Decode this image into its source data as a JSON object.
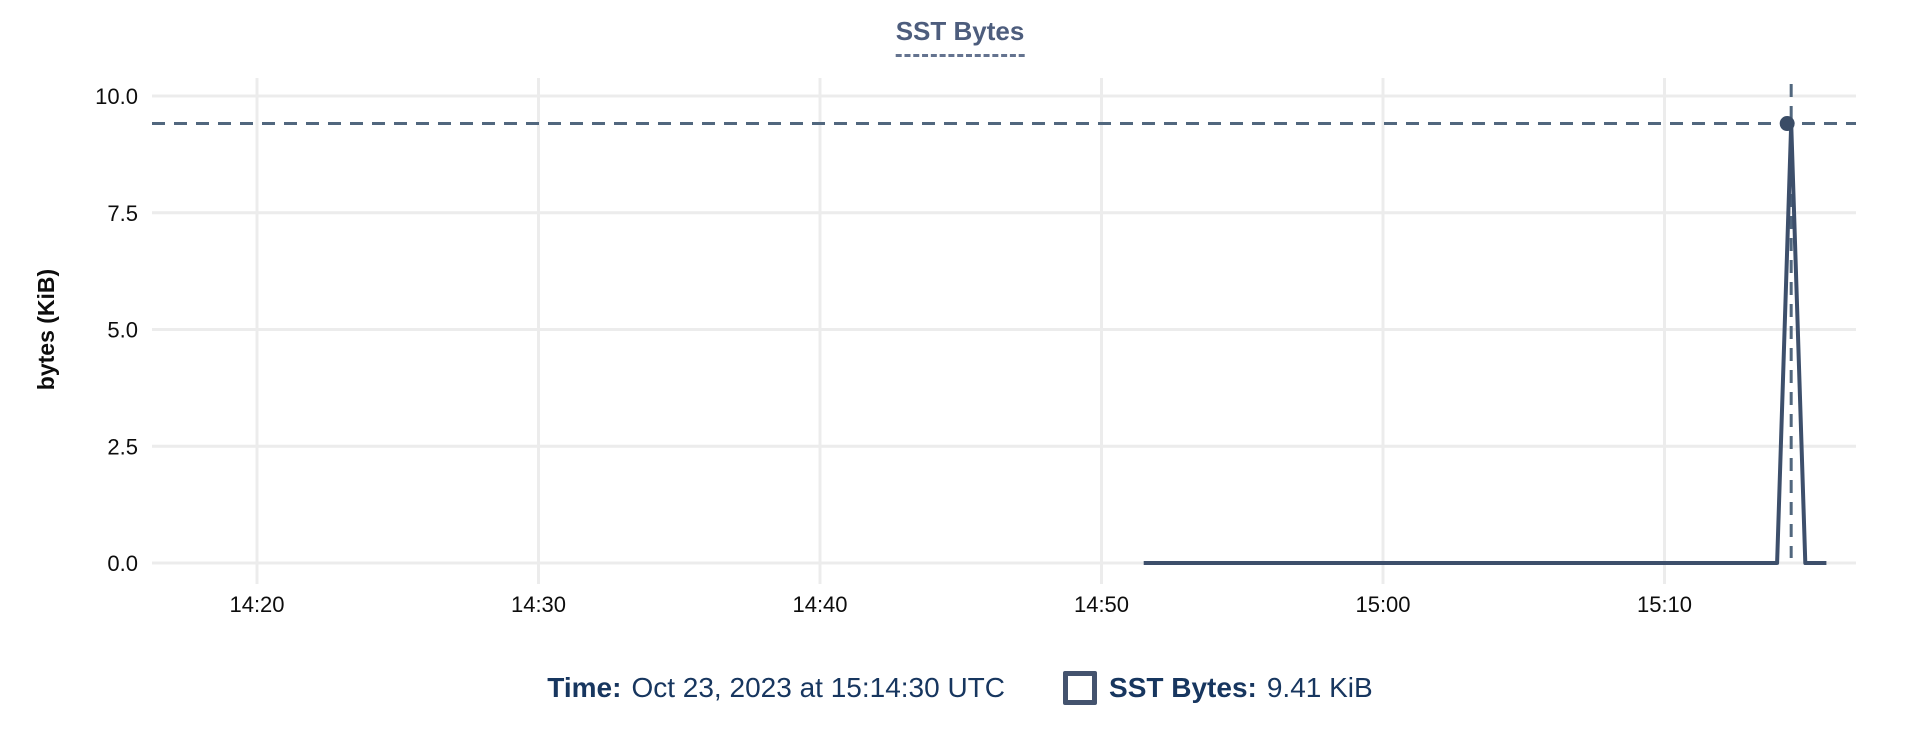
{
  "title": "SST Bytes",
  "tooltip": {
    "time_label": "Time:",
    "time_value": "Oct 23, 2023 at 15:14:30 UTC",
    "series_label": "SST Bytes:",
    "series_value": "9.41 KiB"
  },
  "colors": {
    "title": "#4d5d7d",
    "title_underline": "#64738f",
    "line": "#3d4f6b",
    "crosshair": "#51677e",
    "marker": "#3a4c66",
    "grid": "#ececec",
    "axis_text": "#0d0d0d",
    "legend_text": "#17365f",
    "swatch_border": "#44536e"
  },
  "chart_data": {
    "type": "line",
    "title": "SST Bytes",
    "xlabel": "",
    "ylabel": "bytes (KiB)",
    "ylim": [
      0,
      10
    ],
    "grid": true,
    "legend_position": "bottom",
    "y_ticks": [
      {
        "value": 0,
        "label": "0.0"
      },
      {
        "value": 2.5,
        "label": "2.5"
      },
      {
        "value": 5,
        "label": "5.0"
      },
      {
        "value": 7.5,
        "label": "7.5"
      },
      {
        "value": 10,
        "label": "10.0"
      }
    ],
    "x_ticks": [
      {
        "time": "14:20:00",
        "label": "14:20"
      },
      {
        "time": "14:30:00",
        "label": "14:30"
      },
      {
        "time": "14:40:00",
        "label": "14:40"
      },
      {
        "time": "14:50:00",
        "label": "14:50"
      },
      {
        "time": "15:00:00",
        "label": "15:00"
      },
      {
        "time": "15:10:00",
        "label": "15:10"
      }
    ],
    "series": [
      {
        "name": "SST Bytes",
        "points": [
          [
            "14:51:30",
            0
          ],
          [
            "15:14:00",
            0
          ],
          [
            "15:14:30",
            9.41
          ],
          [
            "15:15:00",
            0
          ],
          [
            "15:15:45",
            0
          ]
        ]
      }
    ],
    "highlight": {
      "date": "Oct 23, 2023",
      "time": "15:14:30",
      "value": 9.41,
      "value_label": "9.41 KiB"
    }
  }
}
